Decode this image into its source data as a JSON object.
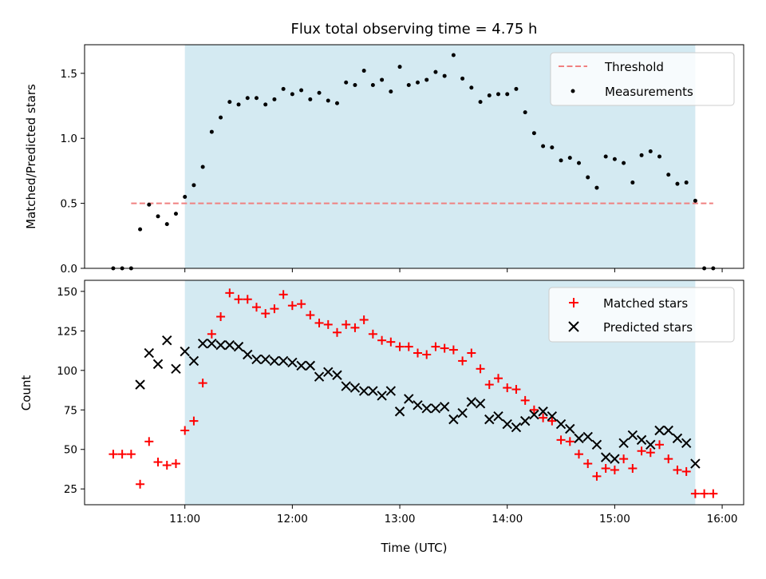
{
  "chart_data": [
    {
      "type": "scatter",
      "title": "Flux total observing time = 4.75 h",
      "xlabel": "",
      "ylabel": "Matched/Predicted stars",
      "xlim": [
        "10:04",
        "16:12"
      ],
      "ylim": [
        0,
        1.72
      ],
      "xticks": [
        "11:00",
        "12:00",
        "13:00",
        "14:00",
        "15:00",
        "16:00"
      ],
      "yticks": [
        0.0,
        0.5,
        1.0,
        1.5
      ],
      "ytick_labels": [
        "0.0",
        "0.5",
        "1.0",
        "1.5"
      ],
      "grid": false,
      "legend_position": "top-right",
      "shaded_interval": {
        "start": "11:00",
        "end": "15:45",
        "color": "#add8e6"
      },
      "threshold": {
        "name": "Threshold",
        "value": 0.5,
        "x_start": "10:30",
        "x_end": "15:55",
        "color": "#f08080",
        "style": "dashed"
      },
      "series": [
        {
          "name": "Measurements",
          "color": "#000000",
          "marker": "dot",
          "x": [
            "10:20",
            "10:25",
            "10:30",
            "10:35",
            "10:40",
            "10:45",
            "10:50",
            "10:55",
            "11:00",
            "11:05",
            "11:10",
            "11:15",
            "11:20",
            "11:25",
            "11:30",
            "11:35",
            "11:40",
            "11:45",
            "11:50",
            "11:55",
            "12:00",
            "12:05",
            "12:10",
            "12:15",
            "12:20",
            "12:25",
            "12:30",
            "12:35",
            "12:40",
            "12:45",
            "12:50",
            "12:55",
            "13:00",
            "13:05",
            "13:10",
            "13:15",
            "13:20",
            "13:25",
            "13:30",
            "13:35",
            "13:40",
            "13:45",
            "13:50",
            "13:55",
            "14:00",
            "14:05",
            "14:10",
            "14:15",
            "14:20",
            "14:25",
            "14:30",
            "14:35",
            "14:40",
            "14:45",
            "14:50",
            "14:55",
            "15:00",
            "15:05",
            "15:10",
            "15:15",
            "15:20",
            "15:25",
            "15:30",
            "15:35",
            "15:40",
            "15:45",
            "15:50",
            "15:55"
          ],
          "y": [
            0.0,
            0.0,
            0.0,
            0.3,
            0.49,
            0.4,
            0.34,
            0.42,
            0.55,
            0.64,
            0.78,
            1.05,
            1.16,
            1.28,
            1.26,
            1.31,
            1.31,
            1.26,
            1.3,
            1.38,
            1.34,
            1.37,
            1.3,
            1.35,
            1.29,
            1.27,
            1.43,
            1.41,
            1.52,
            1.41,
            1.45,
            1.36,
            1.55,
            1.41,
            1.43,
            1.45,
            1.51,
            1.48,
            1.64,
            1.46,
            1.39,
            1.28,
            1.33,
            1.34,
            1.34,
            1.38,
            1.2,
            1.04,
            0.94,
            0.93,
            0.83,
            0.85,
            0.81,
            0.7,
            0.62,
            0.86,
            0.84,
            0.81,
            0.66,
            0.87,
            0.9,
            0.86,
            0.72,
            0.65,
            0.66,
            0.52,
            0.0,
            0.0
          ]
        }
      ]
    },
    {
      "type": "scatter",
      "title": "",
      "xlabel": "Time (UTC)",
      "ylabel": "Count",
      "xlim": [
        "10:04",
        "16:12"
      ],
      "ylim": [
        15,
        157
      ],
      "xticks": [
        "11:00",
        "12:00",
        "13:00",
        "14:00",
        "15:00",
        "16:00"
      ],
      "yticks": [
        25,
        50,
        75,
        100,
        125,
        150
      ],
      "grid": false,
      "legend_position": "top-right",
      "shaded_interval": {
        "start": "11:00",
        "end": "15:45",
        "color": "#add8e6"
      },
      "series": [
        {
          "name": "Matched stars",
          "color": "#ff0000",
          "marker": "plus",
          "x": [
            "10:20",
            "10:25",
            "10:30",
            "10:35",
            "10:40",
            "10:45",
            "10:50",
            "10:55",
            "11:00",
            "11:05",
            "11:10",
            "11:15",
            "11:20",
            "11:25",
            "11:30",
            "11:35",
            "11:40",
            "11:45",
            "11:50",
            "11:55",
            "12:00",
            "12:05",
            "12:10",
            "12:15",
            "12:20",
            "12:25",
            "12:30",
            "12:35",
            "12:40",
            "12:45",
            "12:50",
            "12:55",
            "13:00",
            "13:05",
            "13:10",
            "13:15",
            "13:20",
            "13:25",
            "13:30",
            "13:35",
            "13:40",
            "13:45",
            "13:50",
            "13:55",
            "14:00",
            "14:05",
            "14:10",
            "14:15",
            "14:20",
            "14:25",
            "14:30",
            "14:35",
            "14:40",
            "14:45",
            "14:50",
            "14:55",
            "15:00",
            "15:05",
            "15:10",
            "15:15",
            "15:20",
            "15:25",
            "15:30",
            "15:35",
            "15:40",
            "15:45",
            "15:50",
            "15:55"
          ],
          "y": [
            47,
            47,
            47,
            28,
            55,
            42,
            40,
            41,
            62,
            68,
            92,
            123,
            134,
            149,
            145,
            145,
            140,
            136,
            139,
            148,
            141,
            142,
            135,
            130,
            129,
            124,
            129,
            127,
            132,
            123,
            119,
            118,
            115,
            115,
            111,
            110,
            115,
            114,
            113,
            106,
            111,
            101,
            91,
            95,
            89,
            88,
            81,
            75,
            70,
            68,
            56,
            55,
            47,
            41,
            33,
            38,
            37,
            44,
            38,
            49,
            48,
            53,
            44,
            37,
            36,
            22,
            22,
            22
          ]
        },
        {
          "name": "Predicted stars",
          "color": "#000000",
          "marker": "x",
          "x": [
            "10:35",
            "10:40",
            "10:45",
            "10:50",
            "10:55",
            "11:00",
            "11:05",
            "11:10",
            "11:15",
            "11:20",
            "11:25",
            "11:30",
            "11:35",
            "11:40",
            "11:45",
            "11:50",
            "11:55",
            "12:00",
            "12:05",
            "12:10",
            "12:15",
            "12:20",
            "12:25",
            "12:30",
            "12:35",
            "12:40",
            "12:45",
            "12:50",
            "12:55",
            "13:00",
            "13:05",
            "13:10",
            "13:15",
            "13:20",
            "13:25",
            "13:30",
            "13:35",
            "13:40",
            "13:45",
            "13:50",
            "13:55",
            "14:00",
            "14:05",
            "14:10",
            "14:15",
            "14:20",
            "14:25",
            "14:30",
            "14:35",
            "14:40",
            "14:45",
            "14:50",
            "14:55",
            "15:00",
            "15:05",
            "15:10",
            "15:15",
            "15:20",
            "15:25",
            "15:30",
            "15:35",
            "15:40",
            "15:45"
          ],
          "y": [
            91,
            111,
            104,
            119,
            101,
            112,
            106,
            117,
            117,
            116,
            116,
            115,
            110,
            107,
            107,
            106,
            106,
            105,
            103,
            103,
            96,
            99,
            97,
            90,
            89,
            87,
            87,
            84,
            87,
            74,
            82,
            78,
            76,
            76,
            77,
            69,
            73,
            80,
            79,
            69,
            71,
            66,
            64,
            68,
            72,
            74,
            71,
            66,
            63,
            57,
            58,
            53,
            45,
            44,
            54,
            59,
            56,
            53,
            62,
            62,
            57,
            54,
            41
          ]
        }
      ]
    }
  ]
}
